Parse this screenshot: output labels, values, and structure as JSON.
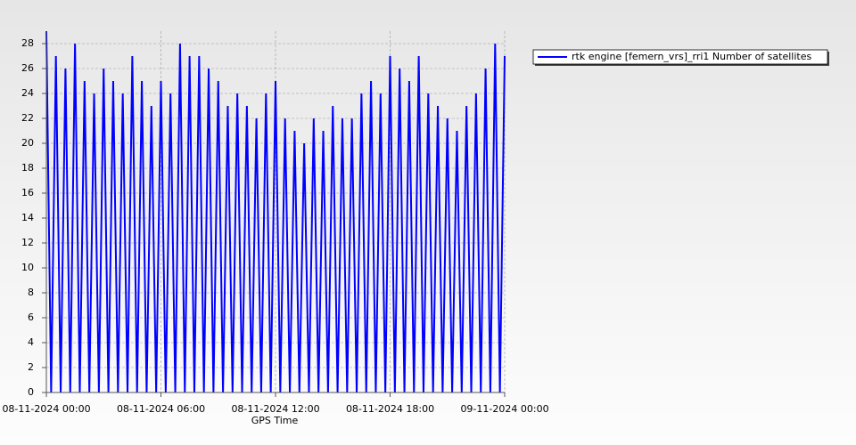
{
  "chart_data": {
    "type": "line",
    "xlabel": "GPS Time",
    "x": [
      "08-11-2024 00:00",
      "08-11-2024 00:15",
      "08-11-2024 00:30",
      "08-11-2024 00:45",
      "08-11-2024 01:00",
      "08-11-2024 01:15",
      "08-11-2024 01:30",
      "08-11-2024 01:45",
      "08-11-2024 02:00",
      "08-11-2024 02:15",
      "08-11-2024 02:30",
      "08-11-2024 02:45",
      "08-11-2024 03:00",
      "08-11-2024 03:15",
      "08-11-2024 03:30",
      "08-11-2024 03:45",
      "08-11-2024 04:00",
      "08-11-2024 04:15",
      "08-11-2024 04:30",
      "08-11-2024 04:45",
      "08-11-2024 05:00",
      "08-11-2024 05:15",
      "08-11-2024 05:30",
      "08-11-2024 05:45",
      "08-11-2024 06:00",
      "08-11-2024 06:15",
      "08-11-2024 06:30",
      "08-11-2024 06:45",
      "08-11-2024 07:00",
      "08-11-2024 07:15",
      "08-11-2024 07:30",
      "08-11-2024 07:45",
      "08-11-2024 08:00",
      "08-11-2024 08:15",
      "08-11-2024 08:30",
      "08-11-2024 08:45",
      "08-11-2024 09:00",
      "08-11-2024 09:15",
      "08-11-2024 09:30",
      "08-11-2024 09:45",
      "08-11-2024 10:00",
      "08-11-2024 10:15",
      "08-11-2024 10:30",
      "08-11-2024 10:45",
      "08-11-2024 11:00",
      "08-11-2024 11:15",
      "08-11-2024 11:30",
      "08-11-2024 11:45",
      "08-11-2024 12:00",
      "08-11-2024 12:15",
      "08-11-2024 12:30",
      "08-11-2024 12:45",
      "08-11-2024 13:00",
      "08-11-2024 13:15",
      "08-11-2024 13:30",
      "08-11-2024 13:45",
      "08-11-2024 14:00",
      "08-11-2024 14:15",
      "08-11-2024 14:30",
      "08-11-2024 14:45",
      "08-11-2024 15:00",
      "08-11-2024 15:15",
      "08-11-2024 15:30",
      "08-11-2024 15:45",
      "08-11-2024 16:00",
      "08-11-2024 16:15",
      "08-11-2024 16:30",
      "08-11-2024 16:45",
      "08-11-2024 17:00",
      "08-11-2024 17:15",
      "08-11-2024 17:30",
      "08-11-2024 17:45",
      "08-11-2024 18:00",
      "08-11-2024 18:15",
      "08-11-2024 18:30",
      "08-11-2024 18:45",
      "08-11-2024 19:00",
      "08-11-2024 19:15",
      "08-11-2024 19:30",
      "08-11-2024 19:45",
      "08-11-2024 20:00",
      "08-11-2024 20:15",
      "08-11-2024 20:30",
      "08-11-2024 20:45",
      "08-11-2024 21:00",
      "08-11-2024 21:15",
      "08-11-2024 21:30",
      "08-11-2024 21:45",
      "08-11-2024 22:00",
      "08-11-2024 22:15",
      "08-11-2024 22:30",
      "08-11-2024 22:45",
      "08-11-2024 23:00",
      "08-11-2024 23:15",
      "08-11-2024 23:30",
      "08-11-2024 23:45",
      "09-11-2024 00:00"
    ],
    "series": [
      {
        "name": "rtk engine [femern_vrs]_rri1 Number of satellites",
        "color": "#0000ff",
        "values": [
          29,
          0,
          27,
          0,
          26,
          0,
          28,
          0,
          25,
          0,
          24,
          0,
          26,
          0,
          25,
          0,
          24,
          0,
          27,
          0,
          25,
          0,
          23,
          0,
          25,
          0,
          24,
          0,
          28,
          0,
          27,
          0,
          27,
          0,
          26,
          0,
          25,
          0,
          23,
          0,
          24,
          0,
          23,
          0,
          22,
          0,
          24,
          0,
          25,
          0,
          22,
          0,
          21,
          0,
          20,
          0,
          22,
          0,
          21,
          0,
          23,
          0,
          22,
          0,
          22,
          0,
          24,
          0,
          25,
          0,
          24,
          0,
          27,
          0,
          26,
          0,
          25,
          0,
          27,
          0,
          24,
          0,
          23,
          0,
          22,
          0,
          21,
          0,
          23,
          0,
          24,
          0,
          26,
          0,
          28,
          0,
          27
        ]
      }
    ],
    "xlim": [
      "08-11-2024 00:00",
      "09-11-2024 00:00"
    ],
    "xticks": [
      "08-11-2024 00:00",
      "08-11-2024 06:00",
      "08-11-2024 12:00",
      "08-11-2024 18:00",
      "09-11-2024 00:00"
    ],
    "ylim": [
      0,
      29
    ],
    "yticks": [
      0,
      2,
      4,
      6,
      8,
      10,
      12,
      14,
      16,
      18,
      20,
      22,
      24,
      26,
      28
    ],
    "grid": true,
    "legend": "top-right"
  }
}
